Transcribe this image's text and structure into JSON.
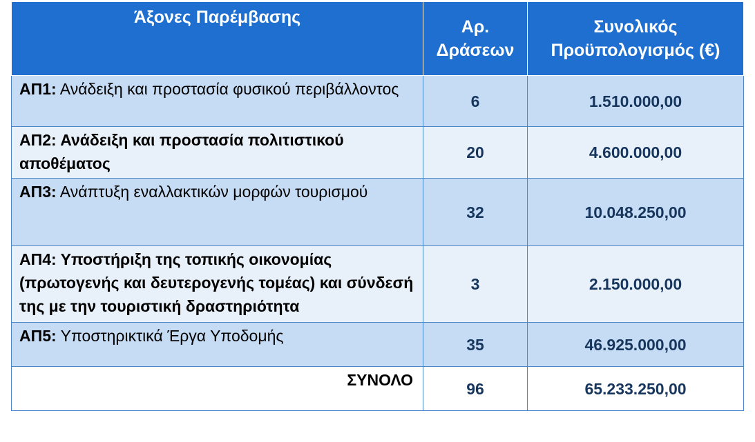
{
  "table": {
    "headers": {
      "axes": "Άξονες Παρέμβασης",
      "actions": "Αρ. Δράσεων",
      "budget": "Συνολικός Προϋπολογισμός (€)"
    },
    "rows": [
      {
        "code": "ΑΠ1:",
        "title": " Ανάδειξη και προστασία φυσικού περιβάλλοντος",
        "actions": "6",
        "budget": "1.510.000,00"
      },
      {
        "code": "ΑΠ2:",
        "title": " Ανάδειξη και προστασία πολιτιστικού αποθέματος",
        "actions": "20",
        "budget": "4.600.000,00"
      },
      {
        "code": "ΑΠ3:",
        "title": " Ανάπτυξη εναλλακτικών μορφών τουρισμού",
        "actions": "32",
        "budget": "10.048.250,00"
      },
      {
        "code": "ΑΠ4:",
        "title": " Υποστήριξη της τοπικής οικονομίας (πρωτογενής και δευτερογενής τομέας) και σύνδεσή της με την τουριστική δραστηριότητα",
        "actions": "3",
        "budget": "2.150.000,00"
      },
      {
        "code": "ΑΠ5:",
        "title": " Υποστηρικτικά Έργα Υποδομής",
        "actions": "35",
        "budget": "46.925.000,00"
      }
    ],
    "total": {
      "label": "ΣΥΝΟΛΟ",
      "actions": "96",
      "budget": "65.233.250,00"
    }
  }
}
